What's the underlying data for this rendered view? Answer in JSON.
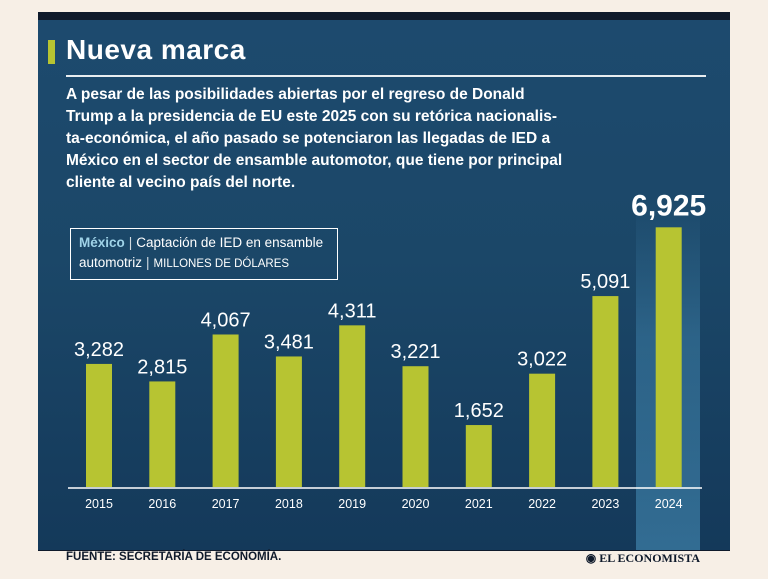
{
  "header": {
    "title": "Nueva marca",
    "intro": "A pesar de las posibilidades abiertas por el regreso de Donald\nTrump a la presidencia de EU este 2025 con su retórica nacionalis-\nta-económica, el año pasado se potenciaron las llegadas de IED a\nMéxico en el sector de ensamble automotor, que tiene por principal\ncliente al vecino país del norte."
  },
  "legend": {
    "country": "México",
    "metric_line1": "Captación de IED en ensamble",
    "metric_line2": "automotriz",
    "units": "MILLONES DE DÓLARES"
  },
  "footer": {
    "source": "FUENTE: SECRETARÍA DE ECONOMÍA.",
    "brand": "EL ECONOMISTA"
  },
  "colors": {
    "background": "#1d4a6e",
    "bar": "#b7c432",
    "text": "#ffffff"
  },
  "chart_data": {
    "type": "bar",
    "title": "Captación de IED en ensamble automotriz",
    "ylabel": "Millones de dólares",
    "xlabel": "",
    "categories": [
      "2015",
      "2016",
      "2017",
      "2018",
      "2019",
      "2020",
      "2021",
      "2022",
      "2023",
      "2024"
    ],
    "values": [
      3282,
      2815,
      4067,
      3481,
      4311,
      3221,
      1652,
      3022,
      5091,
      6925
    ],
    "labels": [
      "3,282",
      "2,815",
      "4,067",
      "3,481",
      "4,311",
      "3,221",
      "1,652",
      "3,022",
      "5,091",
      "6,925"
    ],
    "ylim": [
      0,
      7000
    ],
    "highlight": "2024",
    "grid": false
  }
}
